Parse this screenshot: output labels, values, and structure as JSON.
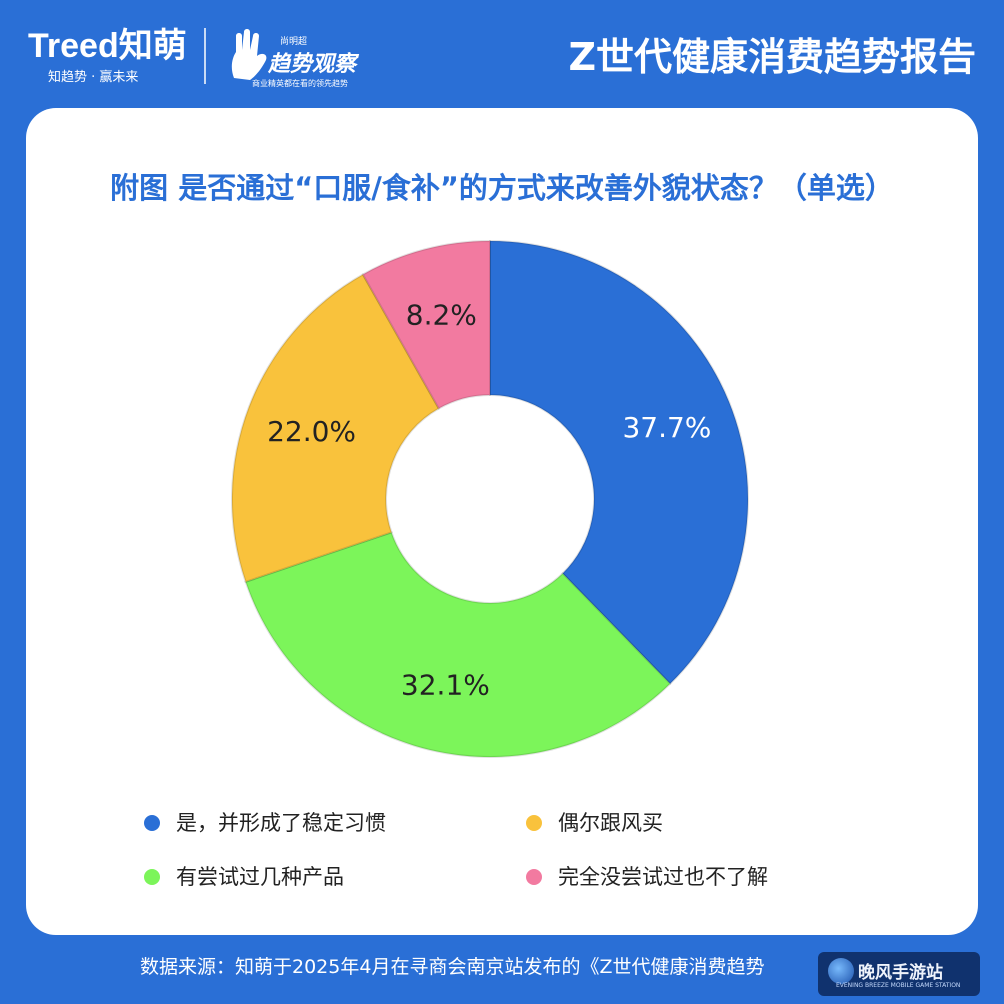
{
  "header": {
    "logo_text": "Treed知萌",
    "logo_sub": "知趋势 · 赢未来",
    "brand2_top": "尚明超",
    "brand2_main": "趋势观察",
    "brand2_bottom": "商业精英都在看的领先趋势",
    "report_title": "Z世代健康消费趋势报告"
  },
  "colors": {
    "background": "#2a6fd6",
    "title": "#2a6fd6",
    "slice_blue": "#2a6fd6",
    "slice_green": "#7cf55a",
    "slice_yellow": "#f9c23c",
    "slice_pink": "#f27aa0"
  },
  "chart_data": {
    "type": "pie",
    "title": "附图 是否通过“口服/食补”的方式来改善外貌状态？（单选）",
    "donut": true,
    "legend_position": "bottom",
    "slices": [
      {
        "name": "是，并形成了稳定习惯",
        "value": 37.7,
        "label": "37.7%",
        "color": "#2a6fd6"
      },
      {
        "name": "有尝试过几种产品",
        "value": 32.1,
        "label": "32.1%",
        "color": "#7cf55a"
      },
      {
        "name": "偶尔跟风买",
        "value": 22.0,
        "label": "22.0%",
        "color": "#f9c23c"
      },
      {
        "name": "完全没尝试过也不了解",
        "value": 8.2,
        "label": "8.2%",
        "color": "#f27aa0"
      }
    ]
  },
  "legend": [
    {
      "label": "是，并形成了稳定习惯",
      "color": "#2a6fd6"
    },
    {
      "label": "偶尔跟风买",
      "color": "#f9c23c"
    },
    {
      "label": "有尝试过几种产品",
      "color": "#7cf55a"
    },
    {
      "label": "完全没尝试过也不了解",
      "color": "#f27aa0"
    }
  ],
  "footer": {
    "source": "数据来源：知萌于2025年4月在寻商会南京站发布的《Z世代健康消费趋势"
  },
  "watermark": {
    "main": "晚风手游站",
    "sub": "EVENING BREEZE MOBILE GAME STATION"
  }
}
